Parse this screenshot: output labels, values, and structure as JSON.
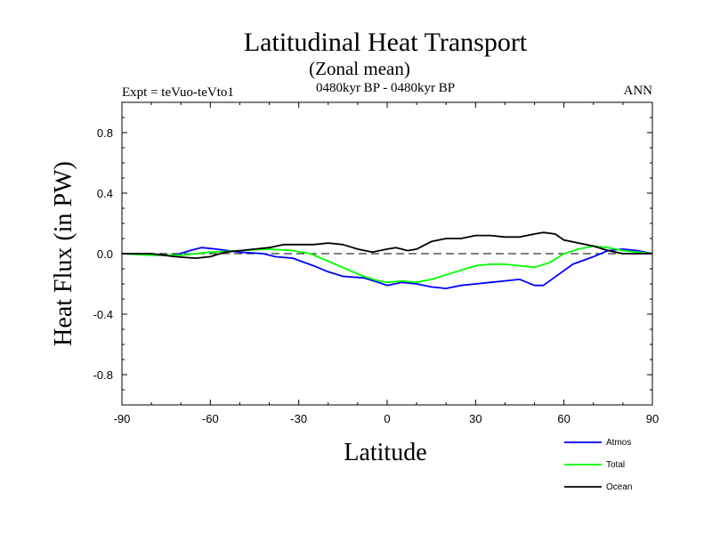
{
  "chart_data": {
    "type": "line",
    "title": "Latitudinal Heat Transport",
    "subtitle": "(Zonal mean)",
    "time_range": "0480kyr BP - 0480kyr BP",
    "left_label": "Expt = teVuo-teVto1",
    "right_label": "ANN",
    "xlabel": "Latitude",
    "ylabel": "Heat Flux (in PW)",
    "xlim": [
      -90,
      90
    ],
    "ylim": [
      -1.0,
      1.0
    ],
    "x_ticks": [
      -90,
      -60,
      -30,
      0,
      30,
      60,
      90
    ],
    "x_tick_labels": [
      "-90",
      "-60",
      "-30",
      "0",
      "30",
      "60",
      "90"
    ],
    "y_ticks": [
      0.8,
      0.4,
      0.0,
      -0.4,
      -0.8
    ],
    "y_tick_labels": [
      "0.8",
      "0.4",
      "0.0",
      "-0.4",
      "-0.8"
    ],
    "zero_line": "dashed",
    "grid": false,
    "legend_position": "bottom-right",
    "series": [
      {
        "name": "Atmos",
        "color": "#0000ff",
        "points": [
          [
            -90,
            0.0
          ],
          [
            -80,
            -0.01
          ],
          [
            -72,
            -0.01
          ],
          [
            -67,
            0.02
          ],
          [
            -63,
            0.04
          ],
          [
            -58,
            0.03
          ],
          [
            -50,
            0.01
          ],
          [
            -42,
            0.0
          ],
          [
            -38,
            -0.02
          ],
          [
            -32,
            -0.03
          ],
          [
            -25,
            -0.08
          ],
          [
            -20,
            -0.12
          ],
          [
            -15,
            -0.15
          ],
          [
            -8,
            -0.16
          ],
          [
            -3,
            -0.19
          ],
          [
            0,
            -0.21
          ],
          [
            5,
            -0.19
          ],
          [
            10,
            -0.2
          ],
          [
            15,
            -0.22
          ],
          [
            20,
            -0.23
          ],
          [
            25,
            -0.21
          ],
          [
            30,
            -0.2
          ],
          [
            35,
            -0.19
          ],
          [
            40,
            -0.18
          ],
          [
            45,
            -0.17
          ],
          [
            50,
            -0.21
          ],
          [
            53,
            -0.21
          ],
          [
            58,
            -0.14
          ],
          [
            63,
            -0.07
          ],
          [
            70,
            -0.02
          ],
          [
            75,
            0.02
          ],
          [
            80,
            0.03
          ],
          [
            85,
            0.02
          ],
          [
            90,
            0.0
          ]
        ]
      },
      {
        "name": "Total",
        "color": "#00ff00",
        "points": [
          [
            -90,
            0.0
          ],
          [
            -80,
            -0.01
          ],
          [
            -70,
            -0.01
          ],
          [
            -60,
            0.01
          ],
          [
            -50,
            0.02
          ],
          [
            -40,
            0.03
          ],
          [
            -32,
            0.02
          ],
          [
            -26,
            0.0
          ],
          [
            -20,
            -0.05
          ],
          [
            -14,
            -0.1
          ],
          [
            -8,
            -0.15
          ],
          [
            -3,
            -0.18
          ],
          [
            0,
            -0.19
          ],
          [
            5,
            -0.18
          ],
          [
            10,
            -0.19
          ],
          [
            15,
            -0.17
          ],
          [
            20,
            -0.14
          ],
          [
            25,
            -0.11
          ],
          [
            30,
            -0.08
          ],
          [
            35,
            -0.07
          ],
          [
            40,
            -0.07
          ],
          [
            45,
            -0.08
          ],
          [
            50,
            -0.09
          ],
          [
            55,
            -0.06
          ],
          [
            60,
            0.0
          ],
          [
            65,
            0.03
          ],
          [
            70,
            0.05
          ],
          [
            75,
            0.04
          ],
          [
            80,
            0.02
          ],
          [
            85,
            0.01
          ],
          [
            90,
            0.0
          ]
        ]
      },
      {
        "name": "Ocean",
        "color": "#000000",
        "points": [
          [
            -90,
            0.0
          ],
          [
            -80,
            0.0
          ],
          [
            -72,
            -0.02
          ],
          [
            -65,
            -0.03
          ],
          [
            -60,
            -0.02
          ],
          [
            -55,
            0.01
          ],
          [
            -50,
            0.02
          ],
          [
            -45,
            0.03
          ],
          [
            -40,
            0.04
          ],
          [
            -35,
            0.06
          ],
          [
            -30,
            0.06
          ],
          [
            -25,
            0.06
          ],
          [
            -20,
            0.07
          ],
          [
            -15,
            0.06
          ],
          [
            -10,
            0.03
          ],
          [
            -5,
            0.01
          ],
          [
            0,
            0.03
          ],
          [
            3,
            0.04
          ],
          [
            7,
            0.02
          ],
          [
            10,
            0.03
          ],
          [
            15,
            0.08
          ],
          [
            20,
            0.1
          ],
          [
            25,
            0.1
          ],
          [
            30,
            0.12
          ],
          [
            35,
            0.12
          ],
          [
            40,
            0.11
          ],
          [
            45,
            0.11
          ],
          [
            50,
            0.13
          ],
          [
            53,
            0.14
          ],
          [
            57,
            0.13
          ],
          [
            60,
            0.09
          ],
          [
            65,
            0.07
          ],
          [
            70,
            0.05
          ],
          [
            75,
            0.02
          ],
          [
            80,
            0.0
          ],
          [
            85,
            0.0
          ],
          [
            90,
            0.0
          ]
        ]
      }
    ]
  }
}
